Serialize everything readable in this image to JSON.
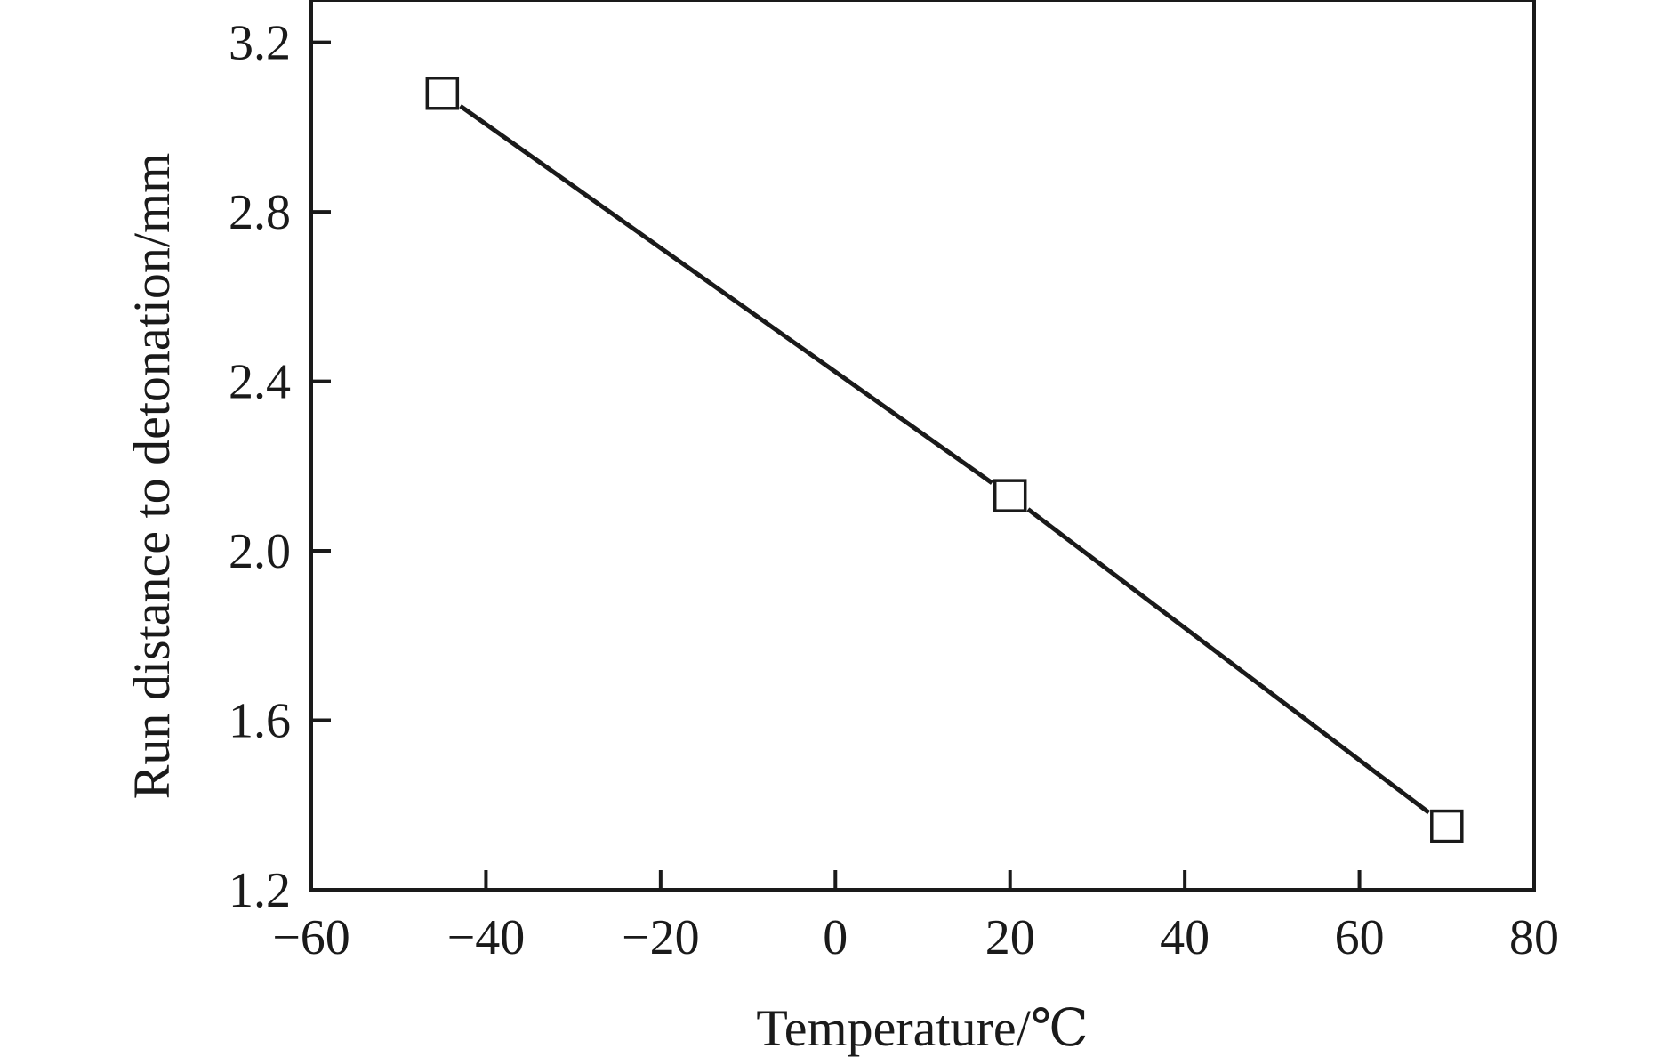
{
  "chart_data": {
    "type": "line",
    "title": "",
    "xlabel": "Temperature/℃",
    "ylabel": "Run distance to detonation/mm",
    "xlim": [
      -60,
      80
    ],
    "ylim": [
      1.2,
      3.3
    ],
    "x_ticks": [
      -60,
      -40,
      -20,
      0,
      20,
      40,
      60,
      80
    ],
    "x_tick_labels": [
      "−60",
      "−40",
      "−20",
      "0",
      "20",
      "40",
      "60",
      "80"
    ],
    "y_ticks": [
      1.2,
      1.6,
      2.0,
      2.4,
      2.8,
      3.2
    ],
    "y_tick_labels": [
      "1.2",
      "1.6",
      "2.0",
      "2.4",
      "2.8",
      "3.2"
    ],
    "grid": false,
    "legend": "none",
    "series": [
      {
        "marker": "open-square",
        "color": "#1a1a1a",
        "x": [
          -45,
          20,
          70
        ],
        "y": [
          3.08,
          2.13,
          1.35
        ]
      }
    ]
  }
}
